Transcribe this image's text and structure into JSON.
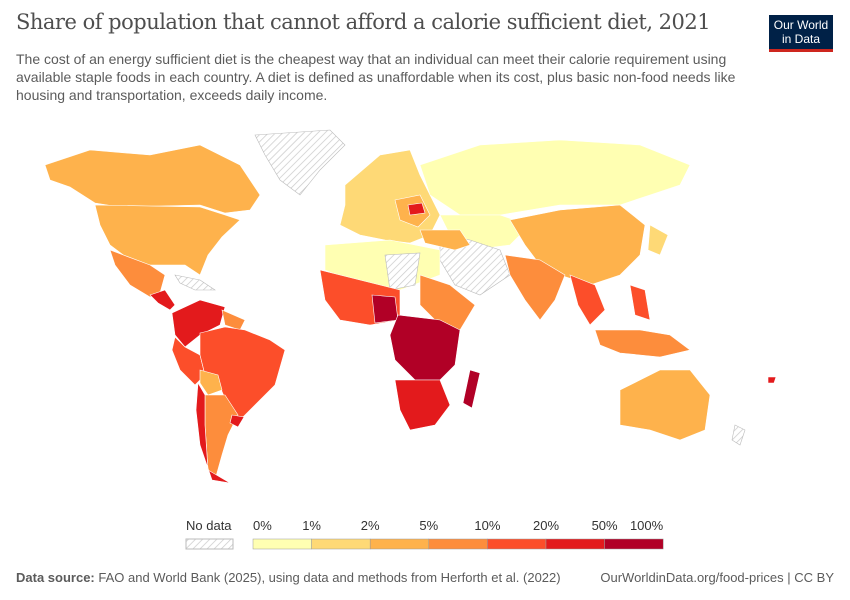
{
  "title": "Share of population that cannot afford a calorie sufficient diet, 2021",
  "subtitle": "The cost of an energy sufficient diet is the cheapest way that an individual can meet their calorie requirement using available staple foods in each country. A diet is defined as unaffordable when its cost, plus basic non-food needs like housing and transportation, exceeds daily income.",
  "logo": {
    "line1": "Our World",
    "line2": "in Data"
  },
  "legend": {
    "no_data": "No data",
    "ticks": [
      "0%",
      "1%",
      "2%",
      "5%",
      "10%",
      "20%",
      "50%",
      "100%"
    ],
    "colors": [
      "#ffffb2",
      "#fed976",
      "#feb24c",
      "#fd8d3c",
      "#fc4e2a",
      "#e31a1c",
      "#b10026"
    ]
  },
  "footer": {
    "source_label": "Data source:",
    "source": "FAO and World Bank (2025), using data and methods from Herforth et al. (2022)",
    "url": "OurWorldinData.org/food-prices | CC BY"
  }
}
